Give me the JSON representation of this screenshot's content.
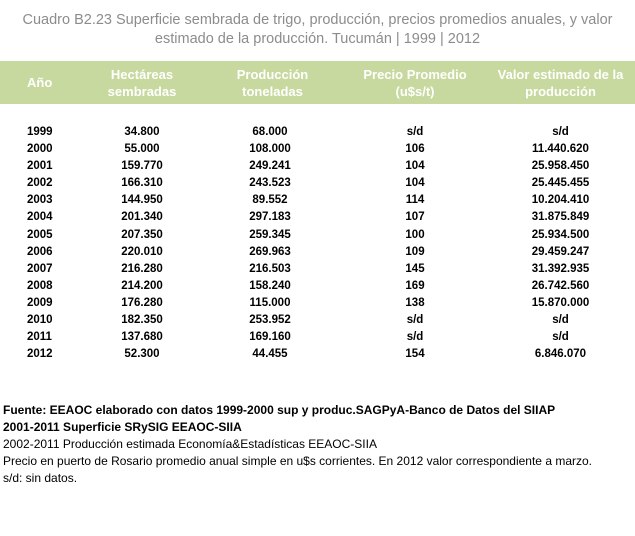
{
  "title": "Cuadro B2.23 Superficie sembrada de trigo, producción, precios promedios anuales, y valor estimado de la producción. Tucumán | 1999 | 2012",
  "header": {
    "anio": "Año",
    "hectareas": "Hectáreas sembradas",
    "produccion": "Producción toneladas",
    "precio": "Precio Promedio (u$s/t)",
    "valor": "Valor estimado de la producción"
  },
  "rows": [
    {
      "anio": "1999",
      "hectareas": "34.800",
      "produccion": "68.000",
      "precio": "s/d",
      "valor": "s/d"
    },
    {
      "anio": "2000",
      "hectareas": "55.000",
      "produccion": "108.000",
      "precio": "106",
      "valor": "11.440.620"
    },
    {
      "anio": "2001",
      "hectareas": "159.770",
      "produccion": "249.241",
      "precio": "104",
      "valor": "25.958.450"
    },
    {
      "anio": "2002",
      "hectareas": "166.310",
      "produccion": "243.523",
      "precio": "104",
      "valor": "25.445.455"
    },
    {
      "anio": "2003",
      "hectareas": "144.950",
      "produccion": "89.552",
      "precio": "114",
      "valor": "10.204.410"
    },
    {
      "anio": "2004",
      "hectareas": "201.340",
      "produccion": "297.183",
      "precio": "107",
      "valor": "31.875.849"
    },
    {
      "anio": "2005",
      "hectareas": "207.350",
      "produccion": "259.345",
      "precio": "100",
      "valor": "25.934.500"
    },
    {
      "anio": "2006",
      "hectareas": "220.010",
      "produccion": "269.963",
      "precio": "109",
      "valor": "29.459.247"
    },
    {
      "anio": "2007",
      "hectareas": "216.280",
      "produccion": "216.503",
      "precio": "145",
      "valor": "31.392.935"
    },
    {
      "anio": "2008",
      "hectareas": "214.200",
      "produccion": "158.240",
      "precio": "169",
      "valor": "26.742.560"
    },
    {
      "anio": "2009",
      "hectareas": "176.280",
      "produccion": "115.000",
      "precio": "138",
      "valor": "15.870.000"
    },
    {
      "anio": "2010",
      "hectareas": "182.350",
      "produccion": "253.952",
      "precio": "s/d",
      "valor": "s/d"
    },
    {
      "anio": "2011",
      "hectareas": "137.680",
      "produccion": "169.160",
      "precio": "s/d",
      "valor": "s/d"
    },
    {
      "anio": "2012",
      "hectareas": "52.300",
      "produccion": "44.455",
      "precio": "154",
      "valor": "6.846.070"
    }
  ],
  "notes": {
    "fuente": "Fuente: EEAOC elaborado con datos 1999-2000 sup y produc.SAGPyA-Banco de Datos del SIIAP",
    "superficie": "2001-2011 Superficie SRySIG EEAOC-SIIA",
    "produccion": "2002-2011 Producción estimada Economía&Estadísticas EEAOC-SIIA",
    "precio": "Precio en puerto de Rosario promedio anual simple en u$s corrientes. En 2012 valor correspondiente a marzo.",
    "sd": "s/d: sin datos."
  }
}
